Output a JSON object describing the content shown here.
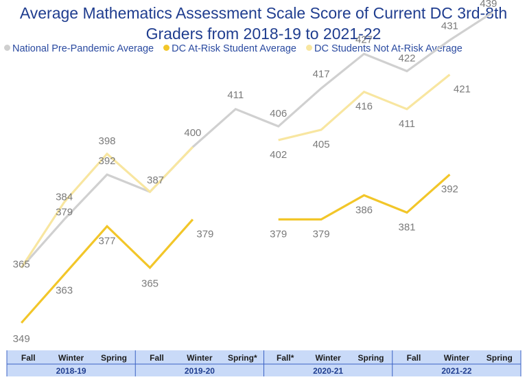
{
  "title_line1": "Average Mathematics Assessment Scale Score of Current DC 3rd-8th",
  "title_line2": "Graders from 2018-19 to 2021-22",
  "colors": {
    "national": "#d0d0d0",
    "atrisk": "#f2c629",
    "notatrisk": "#f8e6a0",
    "axis_band": "#c9daf8",
    "axis_line": "#3b62c4"
  },
  "chart_data": {
    "type": "line",
    "title": "Average Mathematics Assessment Scale Score of Current DC 3rd-8th Graders from 2018-19 to 2021-22",
    "categories": [
      "Fall",
      "Winter",
      "Spring",
      "Fall",
      "Winter",
      "Spring*",
      "Fall*",
      "Winter",
      "Spring",
      "Fall",
      "Winter",
      "Spring"
    ],
    "years": [
      {
        "label": "2018-19",
        "span": [
          0,
          2
        ]
      },
      {
        "label": "2019-20",
        "span": [
          3,
          5
        ]
      },
      {
        "label": "2020-21",
        "span": [
          6,
          8
        ]
      },
      {
        "label": "2021-22",
        "span": [
          9,
          11
        ]
      }
    ],
    "series": [
      {
        "key": "national",
        "name": "National Pre-Pandemic Average",
        "values": [
          365,
          379,
          392,
          387,
          400,
          411,
          406,
          417,
          427,
          422,
          431,
          439
        ],
        "labels": [
          "365",
          "379",
          "392",
          "387",
          "400",
          "411",
          "406",
          "417",
          "427",
          "422",
          "431",
          "439"
        ]
      },
      {
        "key": "atrisk",
        "name": "DC At-Risk Student Average",
        "values": [
          349,
          363,
          377,
          365,
          379,
          null,
          379,
          379,
          386,
          381,
          392,
          null
        ],
        "labels": [
          "349",
          "363",
          "377",
          "365",
          "379",
          null,
          "379",
          "379",
          "386",
          "381",
          "392",
          null
        ]
      },
      {
        "key": "notatrisk",
        "name": "DC Students Not At-Risk Average",
        "values": [
          365,
          384,
          398,
          387,
          400,
          null,
          402,
          405,
          416,
          411,
          421,
          null
        ],
        "labels": [
          "365",
          "384",
          "398",
          "387",
          "400",
          null,
          "402",
          "405",
          "416",
          "411",
          "421",
          null
        ]
      }
    ],
    "ylim": [
      340,
      450
    ],
    "grid": false,
    "legend": "top-left"
  }
}
